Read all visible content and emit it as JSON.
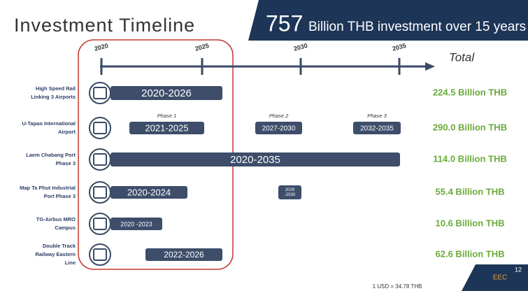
{
  "header": {
    "title": "Investment Timeline",
    "headline_number": "757",
    "headline_text": "Billion THB investment over 15 years"
  },
  "timeline": {
    "years": [
      "2020",
      "2025",
      "2030",
      "2035"
    ],
    "total_label": "Total"
  },
  "rows": [
    {
      "label": [
        "High Speed Rail",
        "Linking 3 Airports"
      ],
      "bars": [
        {
          "text": "2020-2026"
        }
      ],
      "total": "224.5 Billion THB"
    },
    {
      "label": [
        "U-Tapao International",
        "Airport"
      ],
      "bars": [
        {
          "phase": "Phase 1",
          "text": "2021-2025"
        },
        {
          "phase": "Phase 2",
          "text": "2027-2030"
        },
        {
          "phase": "Phase 3",
          "text": "2032-2035"
        }
      ],
      "total": "290.0 Billion THB"
    },
    {
      "label": [
        "Laem Chabang Port",
        "Phase 3"
      ],
      "bars": [
        {
          "text": "2020-2035"
        }
      ],
      "total": "114.0 Billion THB"
    },
    {
      "label": [
        "Map Ta Phut Industrial",
        "Port Phase 3"
      ],
      "bars": [
        {
          "text": "2020-2024"
        },
        {
          "text": [
            "2029",
            "-2030"
          ]
        }
      ],
      "total": "55.4 Billion THB"
    },
    {
      "label": [
        "TG-Airbus MRO",
        "Campus"
      ],
      "bars": [
        {
          "text": "2020 -2023"
        }
      ],
      "total": "10.6 Billion THB"
    },
    {
      "label": [
        "Double Track",
        "Railway Eastern",
        "Line"
      ],
      "bars": [
        {
          "text": "2022-2026"
        }
      ],
      "total": "62.6 Billion THB"
    }
  ],
  "footer": {
    "exchange": "1 USD = 34.78 THB",
    "logo": "EEC",
    "page": "12"
  }
}
